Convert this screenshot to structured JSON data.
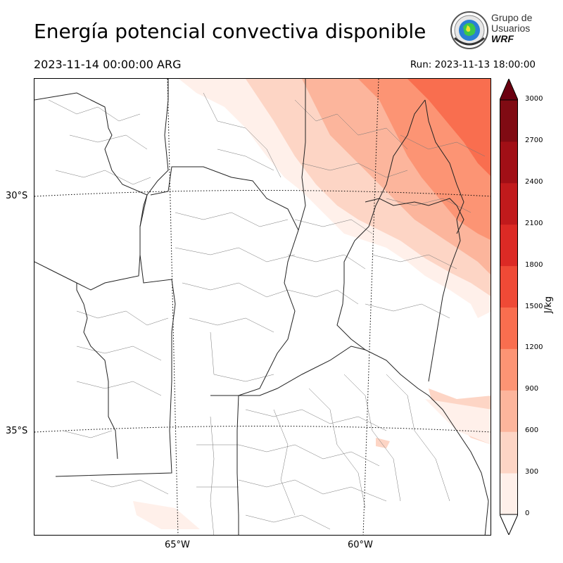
{
  "title": "Energía potencial convectiva disponible",
  "valid_time": "2023-11-14 00:00:00 ARG",
  "run_time": "Run: 2023-11-13 18:00:00",
  "logo": {
    "line1": "Grupo de",
    "line2": "Usuarios",
    "line3": "WRF",
    "icon": "globe-seal-icon"
  },
  "map": {
    "latitude_labels": [
      "30°S",
      "35°S"
    ],
    "longitude_labels": [
      "65°W",
      "60°W"
    ],
    "field": "CAPE"
  },
  "colorbar": {
    "units": "J/kg",
    "ticks": [
      "0",
      "300",
      "600",
      "900",
      "1200",
      "1500",
      "1800",
      "2100",
      "2400",
      "2700",
      "3000"
    ],
    "colors": [
      "#fff0ea",
      "#fdd5c5",
      "#fcb59c",
      "#fc9474",
      "#f96e4f",
      "#ef4a36",
      "#dc2a25",
      "#c11a1c",
      "#a10f16",
      "#800b13"
    ],
    "over_color": "#6b0010",
    "under_color": "#ffffff"
  }
}
